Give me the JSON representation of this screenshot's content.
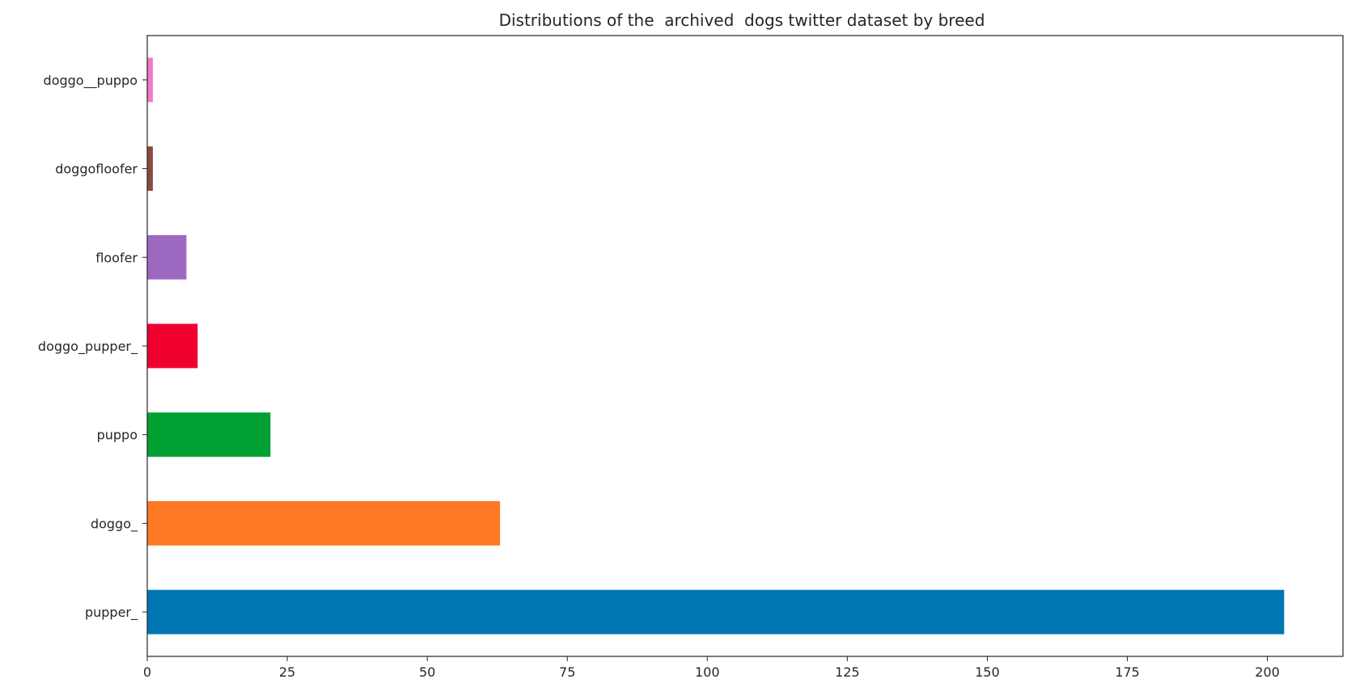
{
  "chart_data": {
    "type": "bar",
    "orientation": "horizontal",
    "title": "Distributions of the  archived  dogs twitter dataset by breed",
    "xlabel": "",
    "ylabel": "",
    "categories": [
      "pupper_",
      "doggo_",
      "puppo",
      "doggo_pupper_",
      "floofer",
      "doggofloofer",
      "doggo__puppo"
    ],
    "values": [
      203,
      63,
      22,
      9,
      7,
      1,
      1
    ],
    "colors": [
      "#0077b3",
      "#ff7826",
      "#00a033",
      "#f0002f",
      "#9d69c0",
      "#8c4a3f",
      "#f578c8"
    ],
    "xlim": [
      0,
      213.5
    ],
    "xticks": [
      0,
      25,
      50,
      75,
      100,
      125,
      150,
      175,
      200
    ],
    "grid": false,
    "legend": "none"
  }
}
